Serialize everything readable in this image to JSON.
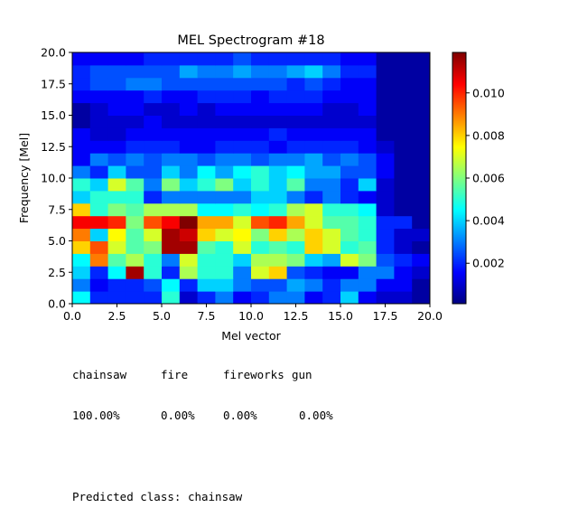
{
  "chart_data": {
    "type": "heatmap",
    "title": "MEL Spectrogram #18",
    "xlabel": "Mel vector",
    "ylabel": "Frequency [Mel]",
    "xlim": [
      0.0,
      20.0
    ],
    "ylim": [
      0.0,
      20.0
    ],
    "x_ticks": [
      "0.0",
      "2.5",
      "5.0",
      "7.5",
      "10.0",
      "12.5",
      "15.0",
      "17.5",
      "20.0"
    ],
    "y_ticks": [
      "0.0",
      "2.5",
      "5.0",
      "7.5",
      "10.0",
      "12.5",
      "15.0",
      "17.5",
      "20.0"
    ],
    "colormap": "jet",
    "colorbar_range": [
      0.0001,
      0.0119
    ],
    "colorbar_ticks": [
      "0.002",
      "0.004",
      "0.006",
      "0.008",
      "0.010"
    ],
    "grid": false,
    "values": [
      [
        0.0045,
        0.002,
        0.002,
        0.002,
        0.002,
        0.005,
        0.001,
        0.002,
        0.003,
        0.0015,
        0.002,
        0.003,
        0.003,
        0.0015,
        0.002,
        0.004,
        0.0015,
        0.001,
        0.001,
        0.0005
      ],
      [
        0.003,
        0.0015,
        0.002,
        0.002,
        0.0025,
        0.0045,
        0.002,
        0.004,
        0.004,
        0.003,
        0.0025,
        0.0025,
        0.0035,
        0.003,
        0.002,
        0.003,
        0.003,
        0.0015,
        0.0015,
        0.0005
      ],
      [
        0.004,
        0.002,
        0.0045,
        0.0115,
        0.005,
        0.002,
        0.0065,
        0.005,
        0.005,
        0.003,
        0.007,
        0.008,
        0.0025,
        0.002,
        0.0015,
        0.0015,
        0.003,
        0.003,
        0.0015,
        0.001
      ],
      [
        0.0045,
        0.009,
        0.0055,
        0.0065,
        0.005,
        0.003,
        0.007,
        0.005,
        0.005,
        0.004,
        0.0065,
        0.0065,
        0.006,
        0.004,
        0.0035,
        0.007,
        0.006,
        0.0025,
        0.002,
        0.0015
      ],
      [
        0.008,
        0.0095,
        0.007,
        0.0055,
        0.006,
        0.0115,
        0.0115,
        0.0055,
        0.005,
        0.007,
        0.005,
        0.0055,
        0.005,
        0.008,
        0.007,
        0.005,
        0.0055,
        0.002,
        0.001,
        0.0005
      ],
      [
        0.009,
        0.004,
        0.0075,
        0.0055,
        0.007,
        0.0115,
        0.011,
        0.008,
        0.007,
        0.0075,
        0.006,
        0.008,
        0.0065,
        0.008,
        0.007,
        0.0055,
        0.005,
        0.002,
        0.001,
        0.001
      ],
      [
        0.0105,
        0.0105,
        0.01,
        0.006,
        0.0095,
        0.0105,
        0.012,
        0.0085,
        0.0085,
        0.007,
        0.0095,
        0.01,
        0.0085,
        0.007,
        0.0055,
        0.0055,
        0.005,
        0.002,
        0.002,
        0.0005
      ],
      [
        0.008,
        0.005,
        0.006,
        0.0055,
        0.0065,
        0.0065,
        0.0065,
        0.0045,
        0.0045,
        0.005,
        0.0045,
        0.005,
        0.0065,
        0.007,
        0.005,
        0.005,
        0.0045,
        0.001,
        0.0005,
        0.0005
      ],
      [
        0.004,
        0.005,
        0.005,
        0.005,
        0.002,
        0.003,
        0.003,
        0.003,
        0.003,
        0.003,
        0.004,
        0.004,
        0.003,
        0.002,
        0.003,
        0.002,
        0.0015,
        0.001,
        0.0005,
        0.0005
      ],
      [
        0.005,
        0.004,
        0.007,
        0.0055,
        0.003,
        0.006,
        0.004,
        0.005,
        0.006,
        0.004,
        0.005,
        0.004,
        0.0055,
        0.003,
        0.003,
        0.002,
        0.004,
        0.001,
        0.0005,
        0.0005
      ],
      [
        0.003,
        0.002,
        0.004,
        0.0025,
        0.0025,
        0.004,
        0.003,
        0.0045,
        0.0035,
        0.0045,
        0.005,
        0.004,
        0.0045,
        0.0035,
        0.0035,
        0.0025,
        0.0025,
        0.0015,
        0.0005,
        0.0005
      ],
      [
        0.0015,
        0.003,
        0.0025,
        0.003,
        0.0025,
        0.003,
        0.003,
        0.0025,
        0.003,
        0.003,
        0.0025,
        0.003,
        0.003,
        0.0035,
        0.0025,
        0.003,
        0.0025,
        0.0015,
        0.0005,
        0.0005
      ],
      [
        0.0015,
        0.0015,
        0.0015,
        0.002,
        0.002,
        0.002,
        0.0015,
        0.0015,
        0.002,
        0.002,
        0.002,
        0.0015,
        0.002,
        0.002,
        0.002,
        0.002,
        0.0015,
        0.001,
        0.0005,
        0.0005
      ],
      [
        0.0015,
        0.001,
        0.001,
        0.0015,
        0.0015,
        0.0015,
        0.0015,
        0.0015,
        0.0015,
        0.0015,
        0.0015,
        0.002,
        0.0015,
        0.0015,
        0.0015,
        0.0015,
        0.0015,
        0.0005,
        0.0005,
        0.0005
      ],
      [
        0.0005,
        0.001,
        0.001,
        0.001,
        0.0015,
        0.001,
        0.001,
        0.001,
        0.001,
        0.001,
        0.001,
        0.001,
        0.001,
        0.001,
        0.001,
        0.001,
        0.001,
        0.0005,
        0.0005,
        0.0005
      ],
      [
        0.0005,
        0.001,
        0.0015,
        0.0015,
        0.001,
        0.001,
        0.0015,
        0.001,
        0.0015,
        0.0015,
        0.0015,
        0.0015,
        0.0015,
        0.0015,
        0.001,
        0.001,
        0.0015,
        0.0005,
        0.0005,
        0.0005
      ],
      [
        0.0015,
        0.0015,
        0.0015,
        0.0015,
        0.002,
        0.0015,
        0.0015,
        0.002,
        0.002,
        0.002,
        0.0015,
        0.002,
        0.002,
        0.002,
        0.0015,
        0.0015,
        0.0015,
        0.0005,
        0.0005,
        0.0005
      ],
      [
        0.002,
        0.0025,
        0.0025,
        0.003,
        0.003,
        0.0025,
        0.0025,
        0.0025,
        0.0025,
        0.0025,
        0.0025,
        0.0025,
        0.002,
        0.0025,
        0.002,
        0.0015,
        0.0015,
        0.0005,
        0.0005,
        0.0005
      ],
      [
        0.002,
        0.0025,
        0.0025,
        0.0025,
        0.0025,
        0.0025,
        0.0035,
        0.003,
        0.003,
        0.0035,
        0.003,
        0.003,
        0.0035,
        0.004,
        0.003,
        0.002,
        0.002,
        0.0005,
        0.0005,
        0.0005
      ],
      [
        0.0015,
        0.0015,
        0.0015,
        0.0015,
        0.002,
        0.002,
        0.002,
        0.002,
        0.002,
        0.0025,
        0.002,
        0.002,
        0.002,
        0.002,
        0.002,
        0.0015,
        0.0015,
        0.0005,
        0.0005,
        0.0005
      ]
    ]
  },
  "results": {
    "class_names": [
      "chainsaw",
      "fire",
      "fireworks",
      "gun"
    ],
    "probabilities": [
      "100.00%",
      "0.00%",
      "0.00%",
      "0.00%"
    ],
    "prediction_label": "Predicted class:",
    "prediction_value": "chainsaw"
  },
  "colors": {
    "axis": "#000000",
    "background": "#ffffff"
  }
}
